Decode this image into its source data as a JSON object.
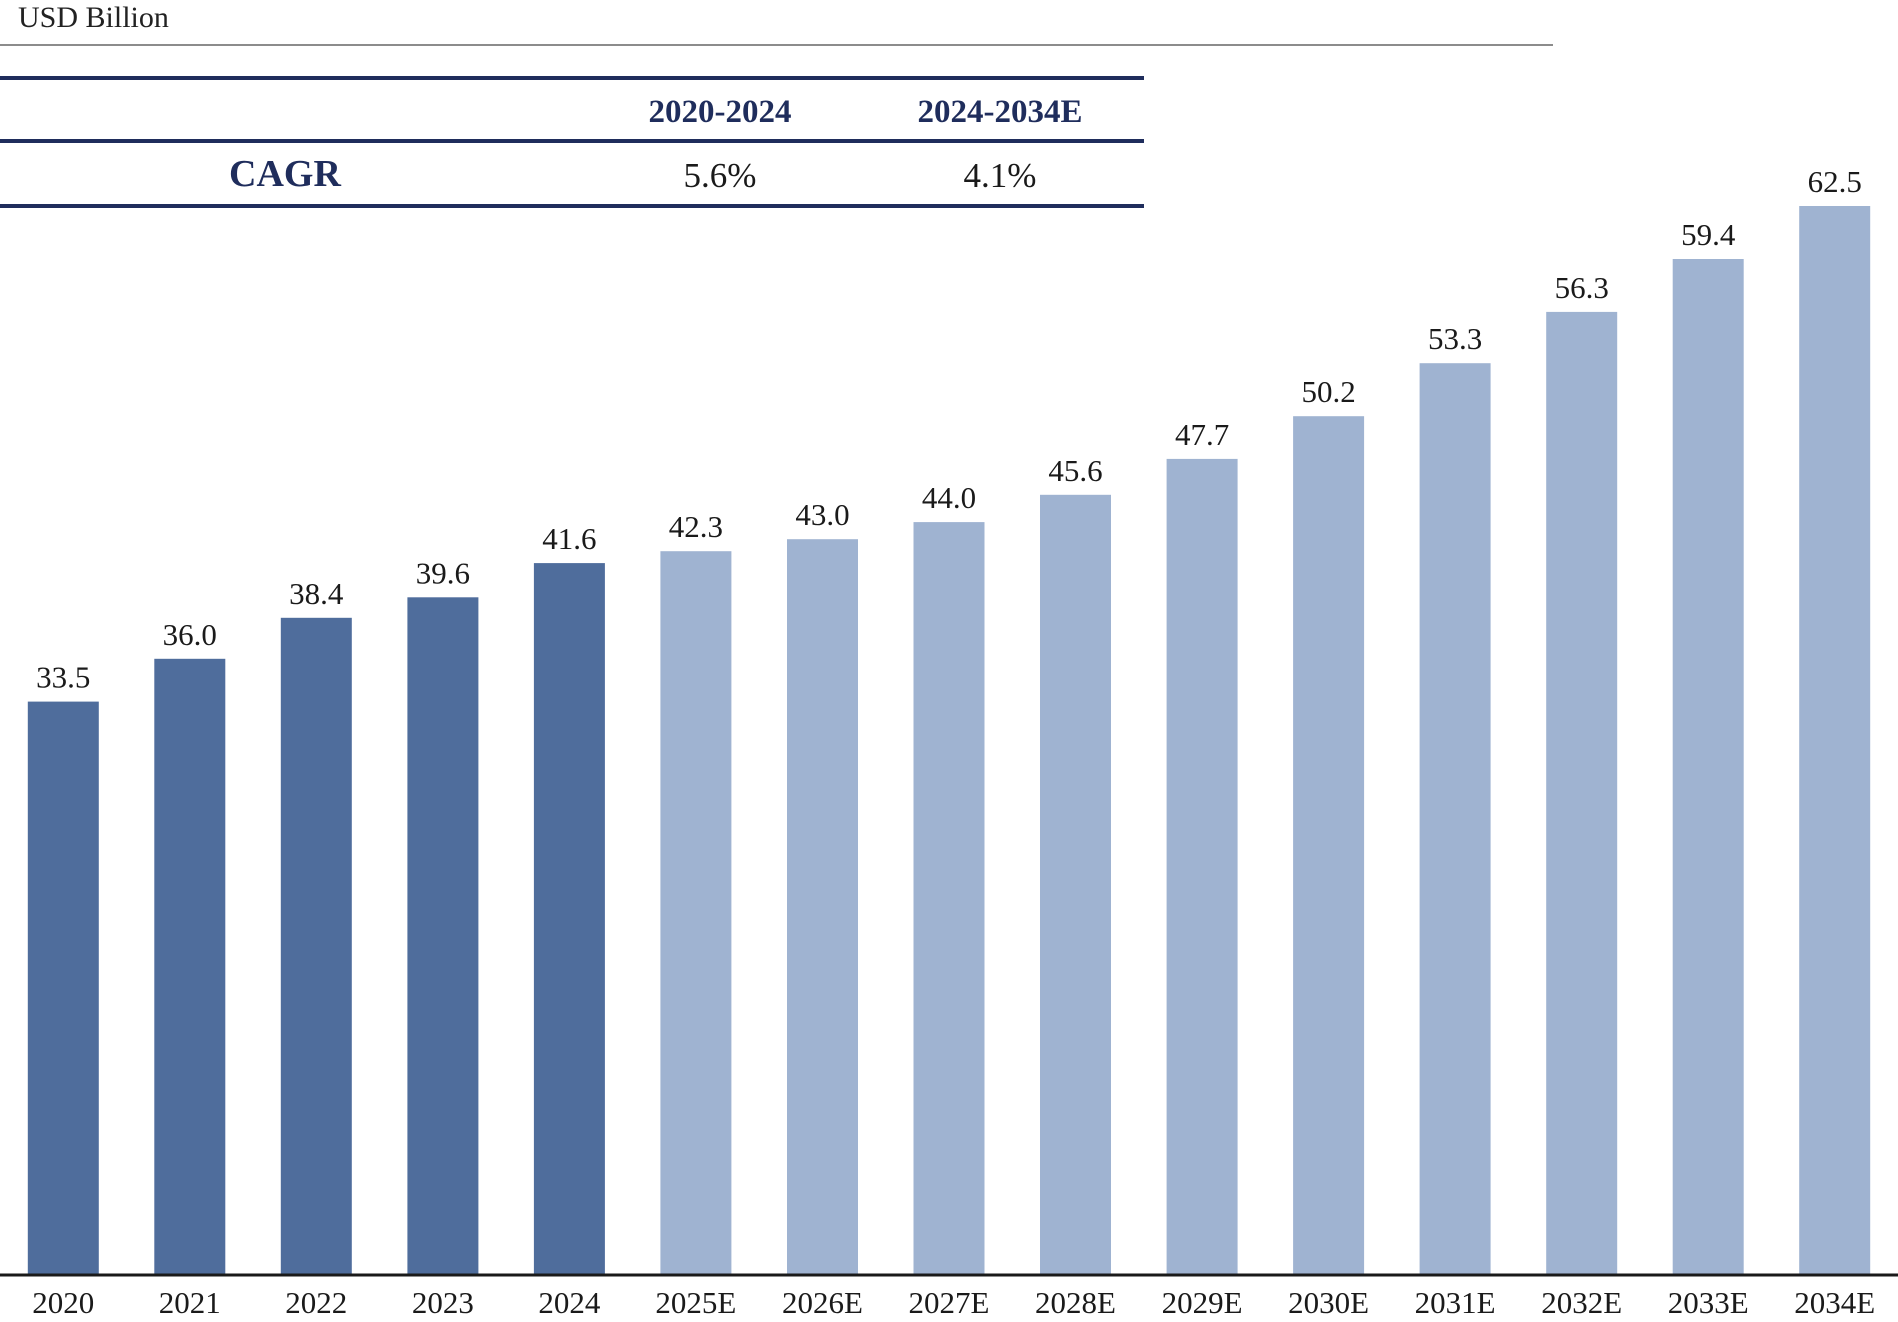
{
  "header": {
    "unit_label": "USD Billion"
  },
  "cagr_table": {
    "row_label": "CAGR",
    "columns": [
      "2020-2024",
      "2024-2034E"
    ],
    "values": [
      "5.6%",
      "4.1%"
    ]
  },
  "chart_data": {
    "type": "bar",
    "ylabel": "USD Billion",
    "categories": [
      "2020",
      "2021",
      "2022",
      "2023",
      "2024",
      "2025E",
      "2026E",
      "2027E",
      "2028E",
      "2029E",
      "2030E",
      "2031E",
      "2032E",
      "2033E",
      "2034E"
    ],
    "values": [
      33.5,
      36.0,
      38.4,
      39.6,
      41.6,
      42.3,
      43.0,
      44.0,
      45.6,
      47.7,
      50.2,
      53.3,
      56.3,
      59.4,
      62.5
    ],
    "value_labels": [
      "33.5",
      "36.0",
      "38.4",
      "39.6",
      "41.6",
      "42.3",
      "43.0",
      "44.0",
      "45.6",
      "47.7",
      "50.2",
      "53.3",
      "56.3",
      "59.4",
      "62.5"
    ],
    "series_kind": [
      "actual",
      "actual",
      "actual",
      "actual",
      "actual",
      "estimate",
      "estimate",
      "estimate",
      "estimate",
      "estimate",
      "estimate",
      "estimate",
      "estimate",
      "estimate",
      "estimate"
    ],
    "colors": {
      "actual": "#4f6d9c",
      "estimate": "#9fb3d1",
      "axis": "#1a1a1a"
    },
    "ylim": [
      0,
      62.5
    ],
    "grid": false,
    "legend": "none"
  }
}
